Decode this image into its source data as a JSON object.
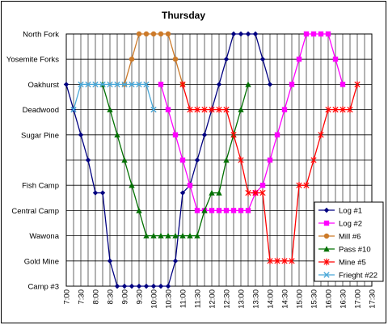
{
  "chart_data": {
    "type": "line",
    "title": "Thursday",
    "xlabel": "",
    "ylabel": "",
    "x_ticks": [
      "7:00",
      "7:30",
      "8:00",
      "8:30",
      "9:00",
      "9:30",
      "10:00",
      "10:30",
      "11:00",
      "11:30",
      "12:00",
      "12:30",
      "13:00",
      "13:30",
      "14:00",
      "14:30",
      "15:00",
      "15:30",
      "16:00",
      "16:30",
      "17:00",
      "17:30"
    ],
    "y_categories": [
      "North Fork",
      "Yosemite Forks",
      "Oakhurst",
      "Deadwood",
      "Sugar Pine",
      "",
      "Fish Camp",
      "Central Camp",
      "Wawona",
      "Gold Mine",
      "Camp #3"
    ],
    "ylim": [
      0,
      10
    ],
    "xlim": [
      "7:00",
      "17:30"
    ],
    "grid": true,
    "legend_position": "right",
    "series": [
      {
        "name": "Log #1",
        "color": "#000080",
        "marker": "diamond",
        "points": [
          [
            "7:00",
            2
          ],
          [
            "7:15",
            3
          ],
          [
            "7:30",
            4
          ],
          [
            "7:45",
            5
          ],
          [
            "8:00",
            6.3
          ],
          [
            "8:15",
            6.3
          ],
          [
            "8:30",
            9
          ],
          [
            "8:45",
            10
          ],
          [
            "9:00",
            10
          ],
          [
            "9:15",
            10
          ],
          [
            "9:30",
            10
          ],
          [
            "9:45",
            10
          ],
          [
            "10:00",
            10
          ],
          [
            "10:15",
            10
          ],
          [
            "10:30",
            10
          ],
          [
            "10:45",
            9
          ],
          [
            "11:00",
            6.3
          ],
          [
            "11:15",
            6
          ],
          [
            "11:30",
            5
          ],
          [
            "11:45",
            4
          ],
          [
            "12:00",
            3
          ],
          [
            "12:15",
            2
          ],
          [
            "12:30",
            1
          ],
          [
            "12:45",
            0
          ],
          [
            "13:00",
            0
          ],
          [
            "13:15",
            0
          ],
          [
            "13:30",
            0
          ],
          [
            "13:45",
            1
          ],
          [
            "14:00",
            2
          ]
        ]
      },
      {
        "name": "Log #2",
        "color": "#ff00ff",
        "marker": "square",
        "points": [
          [
            "10:15",
            2
          ],
          [
            "10:30",
            3
          ],
          [
            "10:45",
            4
          ],
          [
            "11:00",
            5
          ],
          [
            "11:15",
            6
          ],
          [
            "11:30",
            7
          ],
          [
            "11:45",
            7
          ],
          [
            "12:00",
            7
          ],
          [
            "12:15",
            7
          ],
          [
            "12:30",
            7
          ],
          [
            "12:45",
            7
          ],
          [
            "13:00",
            7
          ],
          [
            "13:15",
            7
          ],
          [
            "13:30",
            6.3
          ],
          [
            "13:45",
            6
          ],
          [
            "14:00",
            5
          ],
          [
            "14:15",
            4
          ],
          [
            "14:30",
            3
          ],
          [
            "14:45",
            2
          ],
          [
            "15:00",
            1
          ],
          [
            "15:15",
            0
          ],
          [
            "15:30",
            0
          ],
          [
            "15:45",
            0
          ],
          [
            "16:00",
            0
          ],
          [
            "16:15",
            1
          ],
          [
            "16:30",
            2
          ]
        ]
      },
      {
        "name": "Mill #6",
        "color": "#cc7a29",
        "marker": "circle",
        "points": [
          [
            "9:00",
            2
          ],
          [
            "9:15",
            1
          ],
          [
            "9:30",
            0
          ],
          [
            "9:45",
            0
          ],
          [
            "10:00",
            0
          ],
          [
            "10:15",
            0
          ],
          [
            "10:30",
            0
          ],
          [
            "10:45",
            1
          ],
          [
            "11:00",
            2
          ]
        ]
      },
      {
        "name": "Pass #10",
        "color": "#007000",
        "marker": "triangle",
        "points": [
          [
            "8:15",
            2
          ],
          [
            "8:30",
            3
          ],
          [
            "8:45",
            4
          ],
          [
            "9:00",
            5
          ],
          [
            "9:15",
            6
          ],
          [
            "9:30",
            7
          ],
          [
            "9:45",
            8
          ],
          [
            "10:00",
            8
          ],
          [
            "10:15",
            8
          ],
          [
            "10:30",
            8
          ],
          [
            "10:45",
            8
          ],
          [
            "11:00",
            8
          ],
          [
            "11:15",
            8
          ],
          [
            "11:30",
            8
          ],
          [
            "11:45",
            7
          ],
          [
            "12:00",
            6.3
          ],
          [
            "12:15",
            6.3
          ],
          [
            "12:30",
            5
          ],
          [
            "12:45",
            4
          ],
          [
            "13:00",
            3
          ],
          [
            "13:15",
            2
          ]
        ]
      },
      {
        "name": "Mine #5",
        "color": "#ff0000",
        "marker": "star",
        "points": [
          [
            "11:00",
            2
          ],
          [
            "11:15",
            3
          ],
          [
            "11:30",
            3
          ],
          [
            "11:45",
            3
          ],
          [
            "12:00",
            3
          ],
          [
            "12:15",
            3
          ],
          [
            "12:30",
            3
          ],
          [
            "12:45",
            4
          ],
          [
            "13:00",
            5
          ],
          [
            "13:15",
            6.3
          ],
          [
            "13:30",
            6.3
          ],
          [
            "13:45",
            6.3
          ],
          [
            "14:00",
            9
          ],
          [
            "14:15",
            9
          ],
          [
            "14:30",
            9
          ],
          [
            "14:45",
            9
          ],
          [
            "15:00",
            6
          ],
          [
            "15:15",
            6
          ],
          [
            "15:30",
            5
          ],
          [
            "15:45",
            4
          ],
          [
            "16:00",
            3
          ],
          [
            "16:15",
            3
          ],
          [
            "16:30",
            3
          ],
          [
            "16:45",
            3
          ],
          [
            "17:00",
            2
          ]
        ]
      },
      {
        "name": "Frieght #22",
        "color": "#4aa8d8",
        "marker": "x",
        "points": [
          [
            "7:15",
            3
          ],
          [
            "7:30",
            2
          ],
          [
            "7:45",
            2
          ],
          [
            "8:00",
            2
          ],
          [
            "8:15",
            2
          ],
          [
            "8:30",
            2
          ],
          [
            "8:45",
            2
          ],
          [
            "9:00",
            2
          ],
          [
            "9:15",
            2
          ],
          [
            "9:30",
            2
          ],
          [
            "9:45",
            2
          ],
          [
            "10:00",
            3
          ]
        ]
      }
    ]
  }
}
